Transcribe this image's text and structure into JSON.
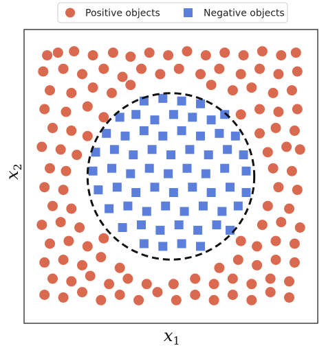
{
  "chart_data": {
    "type": "scatter",
    "title": "",
    "xlabel": "x",
    "xlabel_sub": "1",
    "ylabel": "x",
    "ylabel_sub": "2",
    "xlim": [
      -1,
      1
    ],
    "ylim": [
      -1,
      1
    ],
    "grid": false,
    "legend": {
      "position": "top-center",
      "columns": 2
    },
    "boundary": {
      "shape": "circle",
      "center": [
        0,
        0
      ],
      "radius": 0.62,
      "style": "dashed"
    },
    "colors": {
      "positive": "#D9694F",
      "negative": "#5B7FDB",
      "boundary": "#111111"
    },
    "series": [
      {
        "name": "Positive objects",
        "marker": "circle",
        "points": [
          [
            -0.92,
            0.9
          ],
          [
            -0.84,
            0.92
          ],
          [
            -0.72,
            0.93
          ],
          [
            -0.58,
            0.9
          ],
          [
            -0.43,
            0.92
          ],
          [
            -0.3,
            0.89
          ],
          [
            -0.16,
            0.92
          ],
          [
            -0.02,
            0.9
          ],
          [
            0.12,
            0.93
          ],
          [
            0.26,
            0.9
          ],
          [
            0.4,
            0.92
          ],
          [
            0.54,
            0.9
          ],
          [
            0.68,
            0.93
          ],
          [
            0.82,
            0.9
          ],
          [
            0.93,
            0.92
          ],
          [
            -0.95,
            0.78
          ],
          [
            -0.8,
            0.8
          ],
          [
            -0.66,
            0.76
          ],
          [
            -0.5,
            0.8
          ],
          [
            -0.36,
            0.74
          ],
          [
            -0.22,
            0.8
          ],
          [
            -0.08,
            0.76
          ],
          [
            0.06,
            0.8
          ],
          [
            0.22,
            0.76
          ],
          [
            0.36,
            0.8
          ],
          [
            0.52,
            0.76
          ],
          [
            0.66,
            0.8
          ],
          [
            0.8,
            0.76
          ],
          [
            0.94,
            0.78
          ],
          [
            -0.9,
            0.64
          ],
          [
            -0.74,
            0.62
          ],
          [
            -0.58,
            0.66
          ],
          [
            -0.44,
            0.62
          ],
          [
            -0.3,
            0.68
          ],
          [
            0.3,
            0.68
          ],
          [
            0.46,
            0.64
          ],
          [
            0.6,
            0.66
          ],
          [
            0.76,
            0.62
          ],
          [
            0.9,
            0.64
          ],
          [
            -0.94,
            0.5
          ],
          [
            -0.78,
            0.48
          ],
          [
            -0.62,
            0.52
          ],
          [
            -0.5,
            0.44
          ],
          [
            0.52,
            0.46
          ],
          [
            0.66,
            0.5
          ],
          [
            0.8,
            0.48
          ],
          [
            0.94,
            0.5
          ],
          [
            -0.88,
            0.36
          ],
          [
            -0.74,
            0.34
          ],
          [
            -0.62,
            0.3
          ],
          [
            0.66,
            0.32
          ],
          [
            0.78,
            0.36
          ],
          [
            0.92,
            0.34
          ],
          [
            -0.96,
            0.22
          ],
          [
            -0.82,
            0.2
          ],
          [
            -0.7,
            0.16
          ],
          [
            0.72,
            0.18
          ],
          [
            0.86,
            0.22
          ],
          [
            0.96,
            0.2
          ],
          [
            -0.9,
            0.06
          ],
          [
            -0.78,
            0.04
          ],
          [
            0.76,
            0.06
          ],
          [
            0.9,
            0.04
          ],
          [
            -0.94,
            -0.08
          ],
          [
            -0.8,
            -0.1
          ],
          [
            0.8,
            -0.08
          ],
          [
            0.94,
            -0.1
          ],
          [
            -0.88,
            -0.22
          ],
          [
            -0.74,
            -0.24
          ],
          [
            0.72,
            -0.22
          ],
          [
            0.88,
            -0.24
          ],
          [
            -0.96,
            -0.36
          ],
          [
            -0.82,
            -0.34
          ],
          [
            -0.68,
            -0.38
          ],
          [
            0.68,
            -0.36
          ],
          [
            0.82,
            -0.34
          ],
          [
            0.96,
            -0.38
          ],
          [
            -0.9,
            -0.5
          ],
          [
            -0.76,
            -0.48
          ],
          [
            -0.62,
            -0.52
          ],
          [
            -0.5,
            -0.46
          ],
          [
            0.52,
            -0.48
          ],
          [
            0.64,
            -0.52
          ],
          [
            0.78,
            -0.48
          ],
          [
            0.92,
            -0.5
          ],
          [
            -0.94,
            -0.64
          ],
          [
            -0.8,
            -0.62
          ],
          [
            -0.66,
            -0.66
          ],
          [
            -0.52,
            -0.6
          ],
          [
            -0.38,
            -0.68
          ],
          [
            0.36,
            -0.68
          ],
          [
            0.5,
            -0.62
          ],
          [
            0.64,
            -0.66
          ],
          [
            0.78,
            -0.62
          ],
          [
            0.92,
            -0.64
          ],
          [
            -0.88,
            -0.76
          ],
          [
            -0.74,
            -0.78
          ],
          [
            -0.6,
            -0.74
          ],
          [
            -0.46,
            -0.8
          ],
          [
            -0.32,
            -0.76
          ],
          [
            -0.18,
            -0.8
          ],
          [
            0.02,
            -0.8
          ],
          [
            0.18,
            -0.76
          ],
          [
            0.32,
            -0.8
          ],
          [
            0.46,
            -0.76
          ],
          [
            0.6,
            -0.8
          ],
          [
            0.74,
            -0.76
          ],
          [
            0.88,
            -0.78
          ],
          [
            -0.94,
            -0.88
          ],
          [
            -0.8,
            -0.9
          ],
          [
            -0.66,
            -0.86
          ],
          [
            -0.52,
            -0.92
          ],
          [
            -0.38,
            -0.88
          ],
          [
            -0.24,
            -0.92
          ],
          [
            -0.1,
            -0.86
          ],
          [
            0.04,
            -0.92
          ],
          [
            0.18,
            -0.88
          ],
          [
            0.32,
            -0.92
          ],
          [
            0.46,
            -0.88
          ],
          [
            0.6,
            -0.92
          ],
          [
            0.74,
            -0.86
          ],
          [
            0.88,
            -0.9
          ]
        ]
      },
      {
        "name": "Negative objects",
        "marker": "square",
        "points": [
          [
            -0.2,
            0.56
          ],
          [
            -0.06,
            0.58
          ],
          [
            0.08,
            0.56
          ],
          [
            0.22,
            0.54
          ],
          [
            -0.38,
            0.44
          ],
          [
            -0.26,
            0.46
          ],
          [
            -0.12,
            0.42
          ],
          [
            0.02,
            0.46
          ],
          [
            0.16,
            0.44
          ],
          [
            0.3,
            0.42
          ],
          [
            0.4,
            0.46
          ],
          [
            -0.48,
            0.32
          ],
          [
            -0.34,
            0.3
          ],
          [
            -0.2,
            0.34
          ],
          [
            -0.06,
            0.3
          ],
          [
            0.08,
            0.34
          ],
          [
            0.22,
            0.3
          ],
          [
            0.36,
            0.32
          ],
          [
            0.48,
            0.3
          ],
          [
            -0.56,
            0.18
          ],
          [
            -0.42,
            0.2
          ],
          [
            -0.28,
            0.16
          ],
          [
            -0.14,
            0.2
          ],
          [
            0.0,
            0.16
          ],
          [
            0.14,
            0.2
          ],
          [
            0.28,
            0.16
          ],
          [
            0.42,
            0.2
          ],
          [
            0.54,
            0.16
          ],
          [
            -0.58,
            0.04
          ],
          [
            -0.44,
            0.06
          ],
          [
            -0.3,
            0.02
          ],
          [
            -0.16,
            0.06
          ],
          [
            -0.02,
            0.02
          ],
          [
            0.12,
            0.06
          ],
          [
            0.26,
            0.02
          ],
          [
            0.4,
            0.06
          ],
          [
            0.56,
            0.04
          ],
          [
            -0.54,
            -0.1
          ],
          [
            -0.4,
            -0.08
          ],
          [
            -0.26,
            -0.12
          ],
          [
            -0.12,
            -0.08
          ],
          [
            0.02,
            -0.12
          ],
          [
            0.16,
            -0.08
          ],
          [
            0.3,
            -0.12
          ],
          [
            0.44,
            -0.08
          ],
          [
            0.56,
            -0.12
          ],
          [
            -0.46,
            -0.24
          ],
          [
            -0.32,
            -0.22
          ],
          [
            -0.18,
            -0.26
          ],
          [
            -0.04,
            -0.22
          ],
          [
            0.1,
            -0.26
          ],
          [
            0.24,
            -0.22
          ],
          [
            0.38,
            -0.26
          ],
          [
            0.5,
            -0.22
          ],
          [
            -0.36,
            -0.38
          ],
          [
            -0.22,
            -0.36
          ],
          [
            -0.08,
            -0.4
          ],
          [
            0.06,
            -0.36
          ],
          [
            0.2,
            -0.4
          ],
          [
            0.34,
            -0.36
          ],
          [
            0.44,
            -0.4
          ],
          [
            -0.2,
            -0.5
          ],
          [
            -0.06,
            -0.52
          ],
          [
            0.08,
            -0.5
          ],
          [
            0.22,
            -0.52
          ]
        ]
      }
    ]
  }
}
